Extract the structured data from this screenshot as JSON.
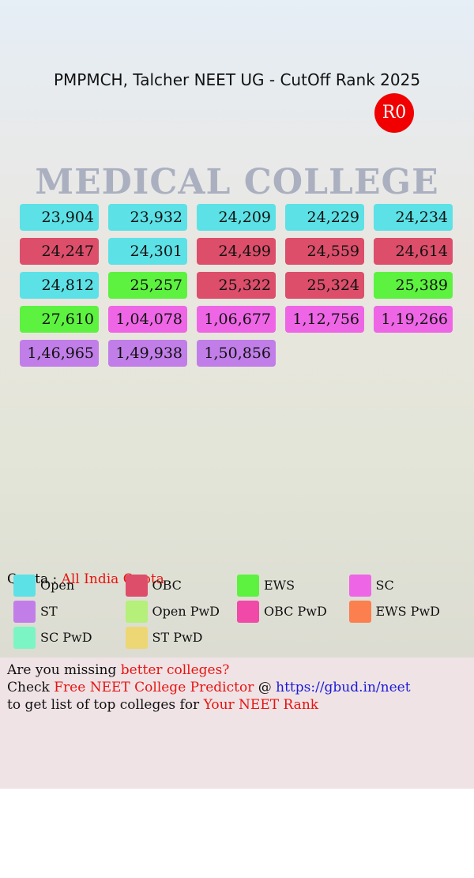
{
  "header": {
    "title": "PMPMCH, Talcher NEET UG - CutOff Rank 2025",
    "badge": "R0",
    "background_text": "MEDICAL COLLEGE"
  },
  "cells": [
    {
      "text": "23,904",
      "color": "#5ce1e6"
    },
    {
      "text": "23,932",
      "color": "#5ce1e6"
    },
    {
      "text": "24,209",
      "color": "#5ce1e6"
    },
    {
      "text": "24,229",
      "color": "#5ce1e6"
    },
    {
      "text": "24,234",
      "color": "#5ce1e6"
    },
    {
      "text": "24,247",
      "color": "#dc4e6a"
    },
    {
      "text": "24,301",
      "color": "#5ce1e6"
    },
    {
      "text": "24,499",
      "color": "#dc4e6a"
    },
    {
      "text": "24,559",
      "color": "#dc4e6a"
    },
    {
      "text": "24,614",
      "color": "#dc4e6a"
    },
    {
      "text": "24,812",
      "color": "#5ce1e6"
    },
    {
      "text": "25,257",
      "color": "#5cf23f"
    },
    {
      "text": "25,322",
      "color": "#dc4e6a"
    },
    {
      "text": "25,324",
      "color": "#dc4e6a"
    },
    {
      "text": "25,389",
      "color": "#5cf23f"
    },
    {
      "text": "27,610",
      "color": "#5cf23f"
    },
    {
      "text": "1,04,078",
      "color": "#ee66e6"
    },
    {
      "text": "1,06,677",
      "color": "#ee66e6"
    },
    {
      "text": "1,12,756",
      "color": "#ee66e6"
    },
    {
      "text": "1,19,266",
      "color": "#ee66e6"
    },
    {
      "text": "1,46,965",
      "color": "#c17ee8"
    },
    {
      "text": "1,49,938",
      "color": "#c17ee8"
    },
    {
      "text": "1,50,856",
      "color": "#c17ee8"
    }
  ],
  "quota": {
    "label": "Quota : ",
    "value": "All India Quota"
  },
  "legend": [
    {
      "label": "Open",
      "color": "#5ce1e6"
    },
    {
      "label": "OBC",
      "color": "#dc4e6a"
    },
    {
      "label": "EWS",
      "color": "#5cf23f"
    },
    {
      "label": "SC",
      "color": "#ee66e6"
    },
    {
      "label": "ST",
      "color": "#c17ee8"
    },
    {
      "label": "Open PwD",
      "color": "#b4f07a"
    },
    {
      "label": "OBC PwD",
      "color": "#f049a8"
    },
    {
      "label": "EWS PwD",
      "color": "#fb7f4f"
    },
    {
      "label": "SC PwD",
      "color": "#7cf5c4"
    },
    {
      "label": "ST PwD",
      "color": "#ecd774"
    }
  ],
  "footer": {
    "lines": [
      [
        {
          "text": "Are you missing ",
          "color": "#111111"
        },
        {
          "text": "better colleges?",
          "color": "#e8130f"
        }
      ],
      [
        {
          "text": "Check ",
          "color": "#111111"
        },
        {
          "text": "Free NEET College Predictor",
          "color": "#e8130f"
        },
        {
          "text": " @ ",
          "color": "#111111"
        },
        {
          "text": "https://gbud.in/neet",
          "color": "#1b1bd6"
        }
      ],
      [
        {
          "text": "to get list of top colleges for ",
          "color": "#111111"
        },
        {
          "text": "Your NEET Rank",
          "color": "#e8130f"
        }
      ]
    ]
  }
}
